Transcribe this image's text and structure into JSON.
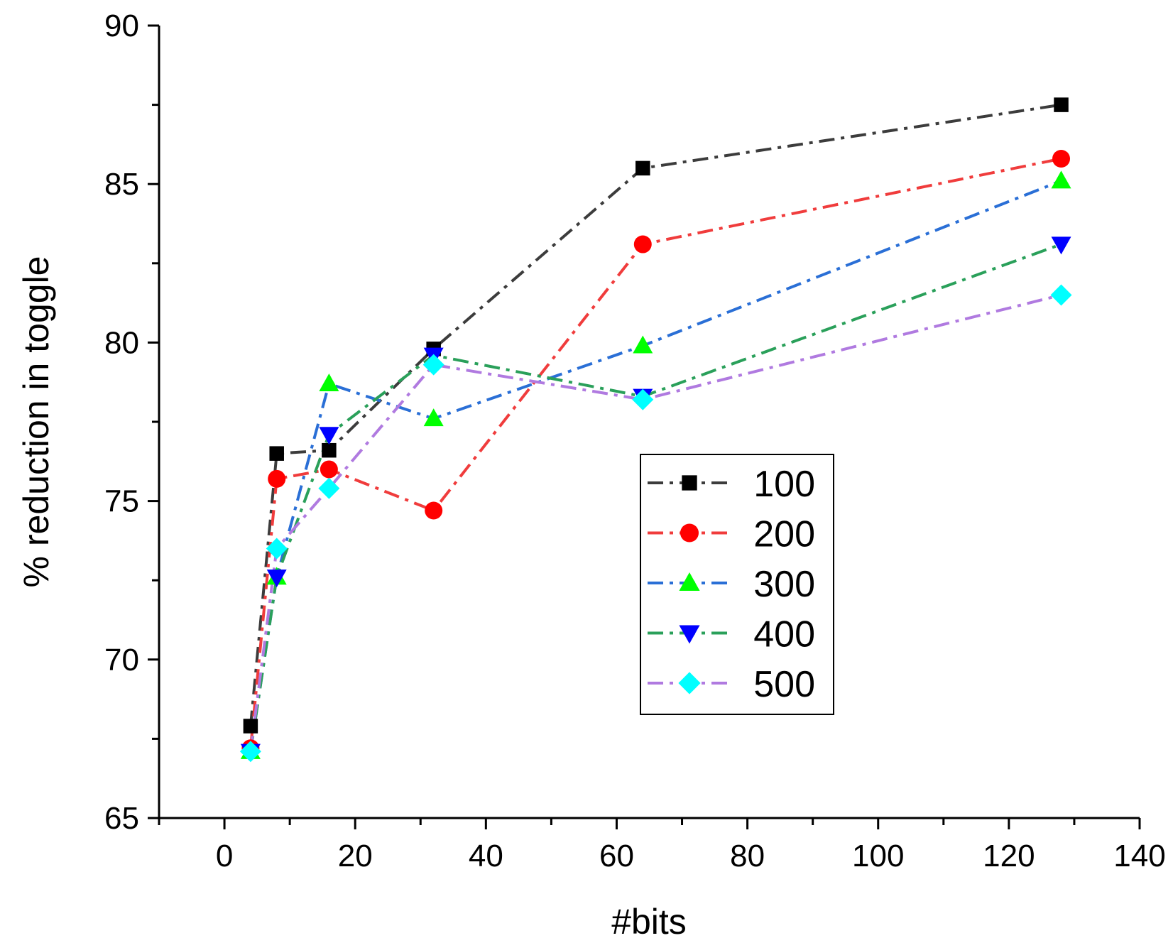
{
  "chart_data": {
    "type": "line",
    "title": "",
    "xlabel": "#bits",
    "ylabel": "% reduction in toggle",
    "xlim": [
      -10,
      140
    ],
    "ylim": [
      65,
      90
    ],
    "xticks": [
      0,
      20,
      40,
      60,
      80,
      100,
      120,
      140
    ],
    "yticks": [
      65,
      70,
      75,
      80,
      85,
      90
    ],
    "x_tick_labels": [
      "0",
      "20",
      "40",
      "60",
      "80",
      "100",
      "120",
      "140"
    ],
    "y_tick_labels": [
      "65",
      "70",
      "75",
      "80",
      "85",
      "90"
    ],
    "x": [
      4,
      8,
      16,
      32,
      64,
      128
    ],
    "legend_position": "center-right",
    "series": [
      {
        "name": "100",
        "marker": "square",
        "color": "#000000",
        "line_color": "#3c3c3c",
        "values": [
          67.9,
          76.5,
          76.6,
          79.8,
          85.5,
          87.5
        ]
      },
      {
        "name": "200",
        "marker": "circle",
        "color": "#ff0000",
        "line_color": "#f03c3c",
        "values": [
          67.2,
          75.7,
          76.0,
          74.7,
          83.1,
          85.8
        ]
      },
      {
        "name": "300",
        "marker": "triangle-up",
        "color": "#00ff00",
        "line_color": "#2a6fd6",
        "values": [
          67.1,
          72.6,
          78.7,
          77.6,
          79.9,
          85.1
        ]
      },
      {
        "name": "400",
        "marker": "triangle-down",
        "color": "#0000ff",
        "line_color": "#2aa05a",
        "values": [
          67.1,
          72.6,
          77.1,
          79.6,
          78.3,
          83.1
        ]
      },
      {
        "name": "500",
        "marker": "diamond",
        "color": "#00ffff",
        "line_color": "#b07ae0",
        "values": [
          67.1,
          73.5,
          75.4,
          79.3,
          78.2,
          81.5
        ]
      }
    ]
  }
}
